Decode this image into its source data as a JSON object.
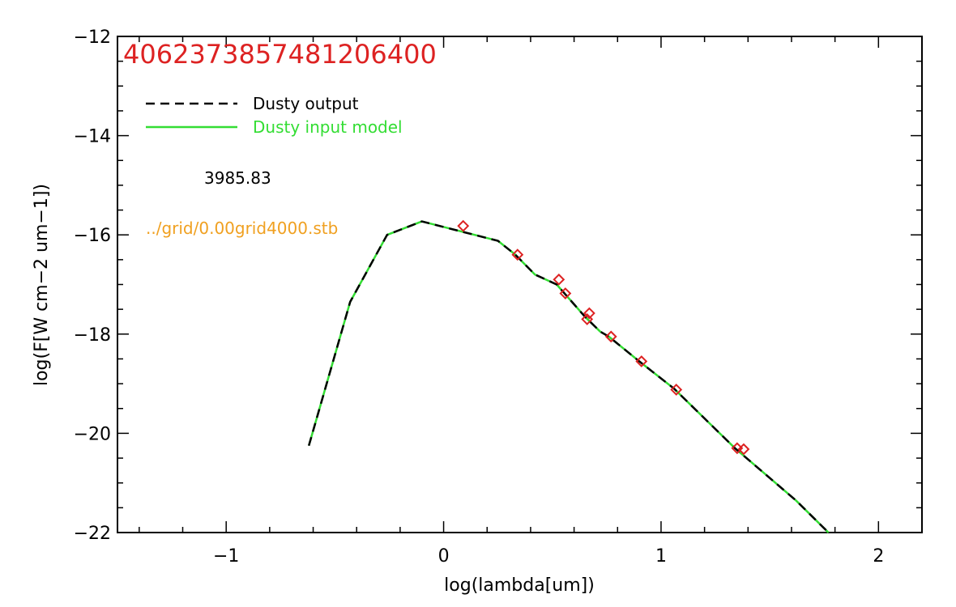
{
  "chart_data": {
    "type": "line",
    "title": "4062373857481206400",
    "xlabel": "log(lambda[um])",
    "ylabel": "log(F[W cm−2 um−1])",
    "xlim": [
      -1.5,
      2.2
    ],
    "ylim": [
      -22,
      -12
    ],
    "grid": false,
    "legend_position": "top-left",
    "xticks": [
      {
        "value": -1,
        "label": "−1"
      },
      {
        "value": 0,
        "label": "0"
      },
      {
        "value": 1,
        "label": "1"
      },
      {
        "value": 2,
        "label": "2"
      }
    ],
    "yticks": [
      {
        "value": -22,
        "label": "−22"
      },
      {
        "value": -20,
        "label": "−20"
      },
      {
        "value": -18,
        "label": "−18"
      },
      {
        "value": -16,
        "label": "−16"
      },
      {
        "value": -14,
        "label": "−14"
      },
      {
        "value": -12,
        "label": "−12"
      }
    ],
    "series": [
      {
        "name": "Dusty input model",
        "style": "solid",
        "color": "#33dd33",
        "x": [
          -0.62,
          -0.43,
          -0.26,
          -0.1,
          0.25,
          0.33,
          0.42,
          0.52,
          0.56,
          0.6,
          0.65,
          0.72,
          0.76,
          0.9,
          1.06,
          1.2,
          1.34,
          1.5,
          1.62,
          1.77
        ],
        "y": [
          -20.25,
          -17.35,
          -16.0,
          -15.73,
          -16.12,
          -16.4,
          -16.8,
          -17.0,
          -17.2,
          -17.4,
          -17.65,
          -17.95,
          -18.05,
          -18.55,
          -19.1,
          -19.7,
          -20.3,
          -20.9,
          -21.35,
          -22.0
        ]
      },
      {
        "name": "Dusty output",
        "style": "dashed",
        "color": "#000000",
        "x": [
          -0.62,
          -0.43,
          -0.26,
          -0.1,
          0.25,
          0.33,
          0.42,
          0.52,
          0.56,
          0.6,
          0.65,
          0.72,
          0.76,
          0.9,
          1.06,
          1.2,
          1.34,
          1.5,
          1.62,
          1.77
        ],
        "y": [
          -20.25,
          -17.35,
          -16.0,
          -15.73,
          -16.12,
          -16.4,
          -16.8,
          -17.0,
          -17.2,
          -17.4,
          -17.65,
          -17.95,
          -18.05,
          -18.55,
          -19.1,
          -19.7,
          -20.3,
          -20.9,
          -21.35,
          -22.0
        ]
      }
    ],
    "observed_points": {
      "marker": "diamond",
      "color": "#dd2222",
      "x": [
        0.09,
        0.34,
        0.53,
        0.56,
        0.66,
        0.67,
        0.77,
        0.91,
        1.07,
        1.35,
        1.38
      ],
      "y": [
        -15.82,
        -16.4,
        -16.9,
        -17.18,
        -17.7,
        -17.58,
        -18.05,
        -18.55,
        -19.12,
        -20.3,
        -20.32
      ]
    },
    "annotations": [
      {
        "text": "3985.83",
        "color": "#000000"
      },
      {
        "text": "../grid/0.00grid4000.stb",
        "color": "#ff9900"
      }
    ]
  }
}
